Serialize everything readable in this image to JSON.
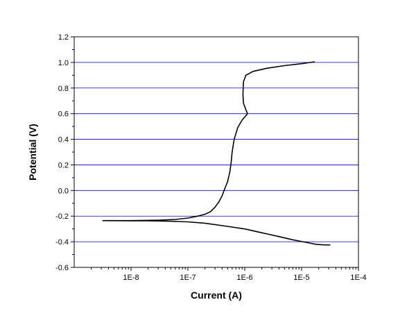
{
  "chart_data": {
    "type": "line",
    "title": "",
    "xlabel": "Current (A)",
    "ylabel": "Potential (V)",
    "x_scale": "log",
    "xlim": [
      1e-09,
      0.0001
    ],
    "ylim": [
      -0.6,
      1.2
    ],
    "x_ticks": [
      {
        "value": 1e-08,
        "label": "1E-8"
      },
      {
        "value": 1e-07,
        "label": "1E-7"
      },
      {
        "value": 1e-06,
        "label": "1E-6"
      },
      {
        "value": 1e-05,
        "label": "1E-5"
      },
      {
        "value": 0.0001,
        "label": "1E-4"
      }
    ],
    "y_ticks": [
      {
        "value": -0.6,
        "label": "-0.6"
      },
      {
        "value": -0.4,
        "label": "-0.4"
      },
      {
        "value": -0.2,
        "label": "-0.2"
      },
      {
        "value": 0.0,
        "label": "0.0"
      },
      {
        "value": 0.2,
        "label": "0.2"
      },
      {
        "value": 0.4,
        "label": "0.4"
      },
      {
        "value": 0.6,
        "label": "0.6"
      },
      {
        "value": 0.8,
        "label": "0.8"
      },
      {
        "value": 1.0,
        "label": "1.0"
      },
      {
        "value": 1.2,
        "label": "1.2"
      }
    ],
    "grid": {
      "y_major": true,
      "x_major": false,
      "color": "#0000cc"
    },
    "legend": "none",
    "series": [
      {
        "color": "#000000",
        "points": [
          [
            3.2e-05,
            -0.425
          ],
          [
            2.5e-05,
            -0.425
          ],
          [
            1.8e-05,
            -0.42
          ],
          [
            1.2e-05,
            -0.405
          ],
          [
            7e-06,
            -0.385
          ],
          [
            4e-06,
            -0.36
          ],
          [
            2e-06,
            -0.33
          ],
          [
            1e-06,
            -0.3
          ],
          [
            5e-07,
            -0.28
          ],
          [
            2e-07,
            -0.255
          ],
          [
            1e-07,
            -0.245
          ],
          [
            5e-08,
            -0.24
          ],
          [
            2e-08,
            -0.237
          ],
          [
            1e-08,
            -0.236
          ],
          [
            3.2e-09,
            -0.235
          ],
          [
            1e-08,
            -0.235
          ],
          [
            3e-08,
            -0.232
          ],
          [
            6e-08,
            -0.226
          ],
          [
            1e-07,
            -0.215
          ],
          [
            1.5e-07,
            -0.2
          ],
          [
            2e-07,
            -0.185
          ],
          [
            2.5e-07,
            -0.165
          ],
          [
            3e-07,
            -0.13
          ],
          [
            3.5e-07,
            -0.09
          ],
          [
            4e-07,
            -0.04
          ],
          [
            4.5e-07,
            0.02
          ],
          [
            5e-07,
            0.07
          ],
          [
            5.5e-07,
            0.15
          ],
          [
            5.8e-07,
            0.23
          ],
          [
            6e-07,
            0.3
          ],
          [
            6.5e-07,
            0.4
          ],
          [
            7.5e-07,
            0.49
          ],
          [
            9e-07,
            0.55
          ],
          [
            1.12e-06,
            0.6
          ],
          [
            1.05e-06,
            0.63
          ],
          [
            9.5e-07,
            0.68
          ],
          [
            9.3e-07,
            0.75
          ],
          [
            9.5e-07,
            0.85
          ],
          [
            1.05e-06,
            0.9
          ],
          [
            1.4e-06,
            0.93
          ],
          [
            2.5e-06,
            0.955
          ],
          [
            5e-06,
            0.975
          ],
          [
            1e-05,
            0.99
          ],
          [
            1.7e-05,
            1.005
          ]
        ]
      }
    ]
  }
}
